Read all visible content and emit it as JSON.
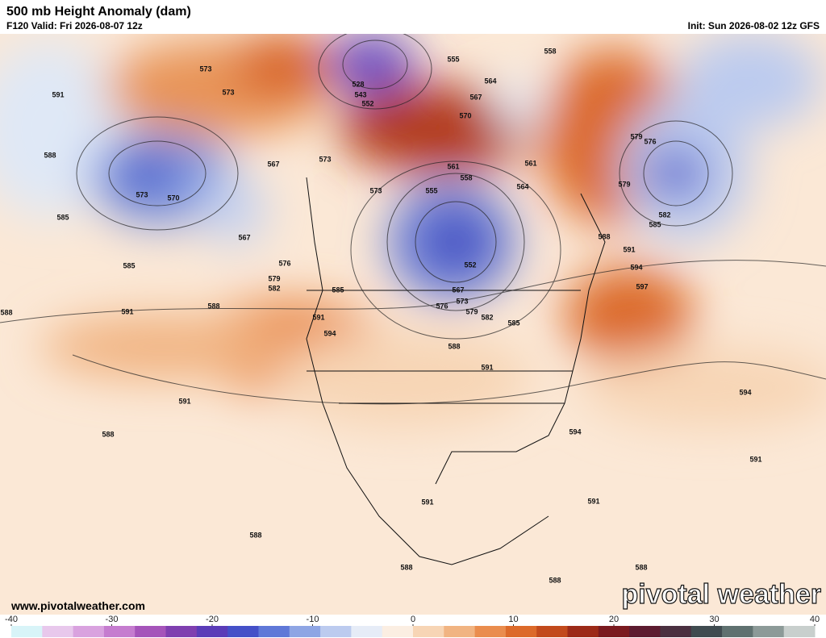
{
  "header": {
    "title": "500 mb Height Anomaly (dam)",
    "valid": "F120 Valid: Fri 2026-08-07 12z",
    "init": "Init: Sun 2026-08-02 12z GFS"
  },
  "contour_labels": [
    573,
    573,
    591,
    588,
    573,
    570,
    567,
    585,
    585,
    576,
    579,
    582,
    588,
    591,
    591,
    594,
    585,
    573,
    573,
    567,
    528,
    543,
    552,
    555,
    558,
    564,
    567,
    570,
    561,
    558,
    555,
    564,
    561,
    579,
    576,
    579,
    582,
    585,
    588,
    591,
    594,
    597,
    552,
    567,
    573,
    576,
    579,
    582,
    585,
    588,
    591,
    594,
    591,
    588,
    594,
    591,
    591,
    591,
    588,
    588,
    588,
    588,
    588
  ],
  "footer": {
    "url": "www.pivotalweather.com",
    "brand": "pivotal weather"
  },
  "colorbar": {
    "range": [
      -40,
      40
    ],
    "ticks": [
      -40,
      -30,
      -20,
      -10,
      0,
      10,
      20,
      30,
      40
    ],
    "colors": [
      "#d8f4f8",
      "#e8c8ec",
      "#d9a2df",
      "#c57ccf",
      "#a554ba",
      "#7f3fb0",
      "#5a3cb8",
      "#4450c8",
      "#5f78d8",
      "#8ea5e4",
      "#bccbef",
      "#e6ecf7",
      "#fbeee2",
      "#f7d5b5",
      "#f1b482",
      "#ea8d4e",
      "#dc6a2a",
      "#c24a1c",
      "#9c2a18",
      "#7a1a1f",
      "#5c1b30",
      "#4a3040",
      "#3f4b50",
      "#5f7170",
      "#8c9a98",
      "#c8cfcd"
    ]
  }
}
